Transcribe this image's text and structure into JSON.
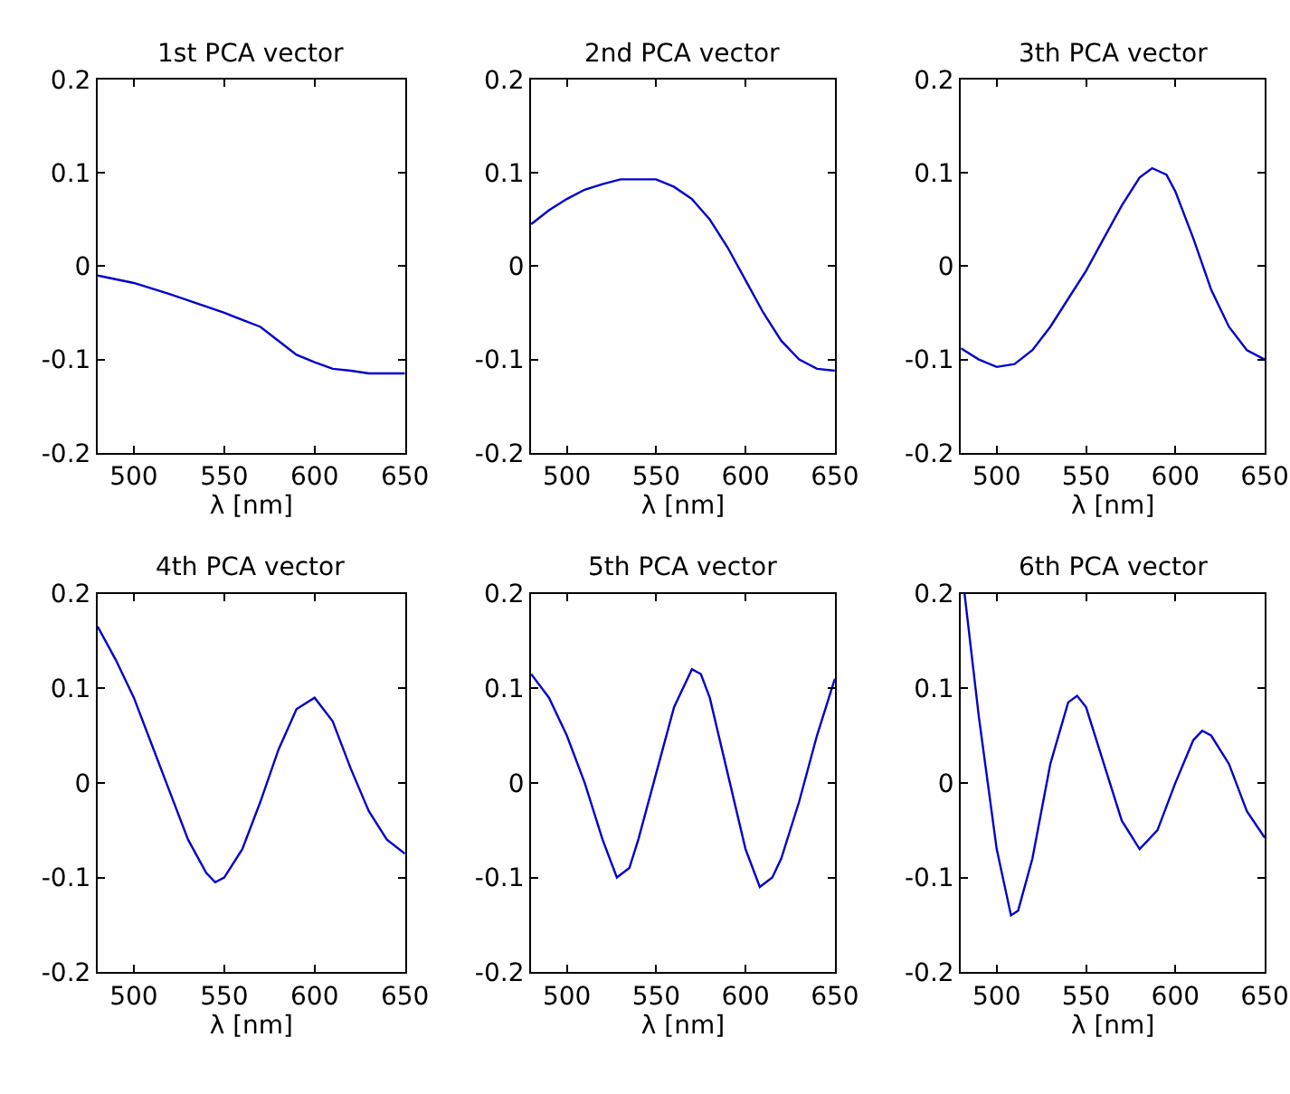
{
  "chart_data": [
    {
      "type": "line",
      "title": "1st PCA vector",
      "xlabel": "λ [nm]",
      "xlim": [
        480,
        650
      ],
      "xticks": [
        500,
        550,
        600,
        650
      ],
      "ylim": [
        -0.2,
        0.2
      ],
      "yticks": [
        -0.2,
        -0.1,
        0,
        0.1,
        0.2
      ],
      "series": [
        {
          "color": "#0000cc",
          "x": [
            480,
            500,
            520,
            550,
            570,
            580,
            590,
            600,
            610,
            620,
            630,
            650
          ],
          "values": [
            -0.01,
            -0.018,
            -0.03,
            -0.05,
            -0.065,
            -0.08,
            -0.095,
            -0.103,
            -0.11,
            -0.112,
            -0.115,
            -0.115
          ]
        }
      ]
    },
    {
      "type": "line",
      "title": "2nd PCA vector",
      "xlabel": "λ [nm]",
      "xlim": [
        480,
        650
      ],
      "xticks": [
        500,
        550,
        600,
        650
      ],
      "ylim": [
        -0.2,
        0.2
      ],
      "yticks": [
        -0.2,
        -0.1,
        0,
        0.1,
        0.2
      ],
      "series": [
        {
          "color": "#0000cc",
          "x": [
            480,
            490,
            500,
            510,
            520,
            530,
            550,
            560,
            570,
            580,
            590,
            600,
            610,
            620,
            630,
            640,
            650
          ],
          "values": [
            0.045,
            0.06,
            0.072,
            0.082,
            0.088,
            0.093,
            0.093,
            0.085,
            0.072,
            0.05,
            0.02,
            -0.015,
            -0.05,
            -0.08,
            -0.1,
            -0.11,
            -0.112
          ]
        }
      ]
    },
    {
      "type": "line",
      "title": "3th PCA vector",
      "xlabel": "λ [nm]",
      "xlim": [
        480,
        650
      ],
      "xticks": [
        500,
        550,
        600,
        650
      ],
      "ylim": [
        -0.2,
        0.2
      ],
      "yticks": [
        -0.2,
        -0.1,
        0,
        0.1,
        0.2
      ],
      "series": [
        {
          "color": "#0000cc",
          "x": [
            480,
            490,
            500,
            510,
            520,
            530,
            540,
            550,
            560,
            570,
            580,
            587,
            595,
            600,
            610,
            620,
            630,
            640,
            650
          ],
          "values": [
            -0.088,
            -0.1,
            -0.108,
            -0.105,
            -0.09,
            -0.065,
            -0.035,
            -0.005,
            0.03,
            0.065,
            0.095,
            0.105,
            0.098,
            0.08,
            0.03,
            -0.025,
            -0.065,
            -0.09,
            -0.1
          ]
        }
      ]
    },
    {
      "type": "line",
      "title": "4th PCA vector",
      "xlabel": "λ [nm]",
      "xlim": [
        480,
        650
      ],
      "xticks": [
        500,
        550,
        600,
        650
      ],
      "ylim": [
        -0.2,
        0.2
      ],
      "yticks": [
        -0.2,
        -0.1,
        0,
        0.1,
        0.2
      ],
      "series": [
        {
          "color": "#0000cc",
          "x": [
            480,
            490,
            500,
            510,
            520,
            530,
            540,
            545,
            550,
            560,
            570,
            580,
            590,
            600,
            610,
            620,
            630,
            640,
            650
          ],
          "values": [
            0.165,
            0.13,
            0.09,
            0.04,
            -0.01,
            -0.06,
            -0.095,
            -0.105,
            -0.1,
            -0.07,
            -0.02,
            0.035,
            0.078,
            0.09,
            0.065,
            0.015,
            -0.03,
            -0.06,
            -0.075
          ]
        }
      ]
    },
    {
      "type": "line",
      "title": "5th PCA vector",
      "xlabel": "λ [nm]",
      "xlim": [
        480,
        650
      ],
      "xticks": [
        500,
        550,
        600,
        650
      ],
      "ylim": [
        -0.2,
        0.2
      ],
      "yticks": [
        -0.2,
        -0.1,
        0,
        0.1,
        0.2
      ],
      "series": [
        {
          "color": "#0000cc",
          "x": [
            480,
            490,
            500,
            510,
            520,
            528,
            535,
            540,
            550,
            560,
            570,
            575,
            580,
            590,
            600,
            608,
            615,
            620,
            630,
            640,
            650
          ],
          "values": [
            0.115,
            0.09,
            0.05,
            0.0,
            -0.06,
            -0.1,
            -0.09,
            -0.06,
            0.01,
            0.08,
            0.12,
            0.115,
            0.09,
            0.01,
            -0.07,
            -0.11,
            -0.1,
            -0.08,
            -0.02,
            0.05,
            0.11
          ]
        }
      ]
    },
    {
      "type": "line",
      "title": "6th PCA vector",
      "xlabel": "λ [nm]",
      "xlim": [
        480,
        650
      ],
      "xticks": [
        500,
        550,
        600,
        650
      ],
      "ylim": [
        -0.2,
        0.2
      ],
      "yticks": [
        -0.2,
        -0.1,
        0,
        0.1,
        0.2
      ],
      "series": [
        {
          "color": "#0000cc",
          "x": [
            482,
            490,
            500,
            508,
            512,
            520,
            530,
            540,
            545,
            550,
            560,
            570,
            580,
            590,
            600,
            610,
            615,
            620,
            630,
            640,
            650
          ],
          "values": [
            0.2,
            0.07,
            -0.07,
            -0.14,
            -0.135,
            -0.08,
            0.02,
            0.085,
            0.092,
            0.08,
            0.02,
            -0.04,
            -0.07,
            -0.05,
            0.0,
            0.045,
            0.055,
            0.05,
            0.02,
            -0.03,
            -0.058
          ]
        }
      ]
    }
  ]
}
